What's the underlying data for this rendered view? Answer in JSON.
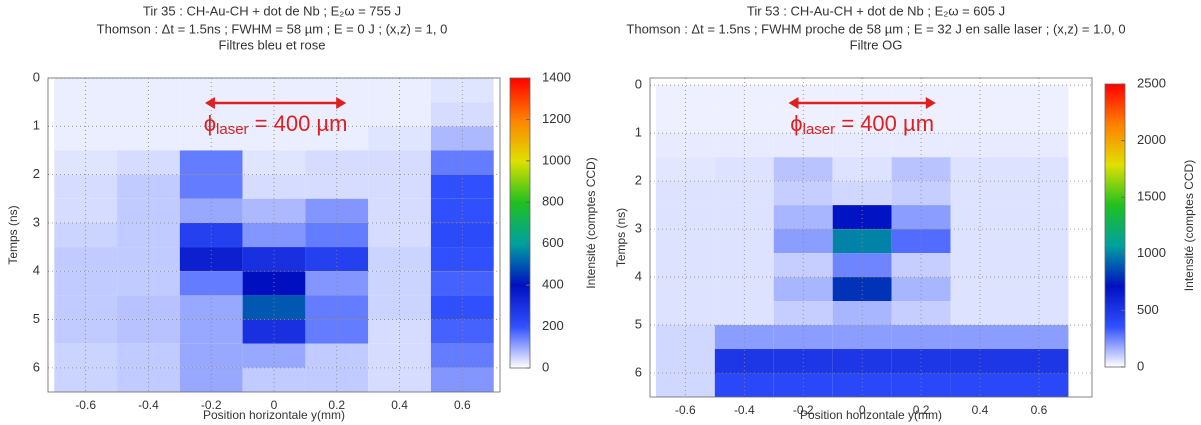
{
  "chart_data": [
    {
      "type": "heatmap",
      "title": "Tir 35 : CH-Au-CH + dot de Nb ; E₂ω = 755 J",
      "subtitles": [
        "Thomson : Δt = 1.5ns ; FWHM = 58 µm ; E = 0 J ; (x,z) = 1, 0",
        "Filtres bleu et rose"
      ],
      "x_label": "Position horizontale y(mm)",
      "y_label": "Temps (ns)",
      "z_label": "Intensité (comptes CCD)",
      "xlim": [
        -0.72,
        0.72
      ],
      "xticks": [
        -0.6,
        -0.4,
        -0.2,
        0,
        0.2,
        0.4,
        0.6
      ],
      "ylim": [
        6.5,
        0
      ],
      "yticks": [
        0,
        1,
        2,
        3,
        4,
        5,
        6
      ],
      "zlim": [
        0,
        1400
      ],
      "zticks": [
        0,
        200,
        400,
        600,
        800,
        1000,
        1200,
        1400
      ],
      "colorscale": [
        "#ffffff",
        "#3050ff",
        "#0010c0",
        "#00a0a0",
        "#20c020",
        "#e0e000",
        "#ff8000",
        "#ff0000"
      ],
      "grid": true,
      "annotation": {
        "symbol": "ϕ",
        "subscript": "laser",
        "text": " = 400 µm",
        "color": "#e02020",
        "arrow_x": [
          -0.22,
          0.23
        ]
      },
      "xbins": [
        -0.7,
        -0.5,
        -0.3,
        -0.1,
        0.1,
        0.3,
        0.5,
        0.7
      ],
      "ybins": [
        0,
        0.5,
        1,
        1.5,
        2,
        2.5,
        3,
        3.5,
        4,
        4.5,
        5,
        5.5,
        6,
        6.5
      ],
      "values": [
        [
          20,
          20,
          20,
          20,
          20,
          20,
          30
        ],
        [
          20,
          20,
          20,
          20,
          20,
          20,
          40
        ],
        [
          20,
          20,
          20,
          20,
          20,
          30,
          80
        ],
        [
          30,
          40,
          150,
          30,
          40,
          40,
          150
        ],
        [
          40,
          60,
          150,
          40,
          40,
          40,
          200
        ],
        [
          40,
          60,
          100,
          80,
          120,
          40,
          200
        ],
        [
          50,
          60,
          250,
          120,
          150,
          40,
          220
        ],
        [
          60,
          60,
          350,
          300,
          250,
          50,
          200
        ],
        [
          60,
          60,
          150,
          400,
          120,
          50,
          180
        ],
        [
          60,
          70,
          100,
          500,
          150,
          50,
          200
        ],
        [
          60,
          70,
          100,
          300,
          150,
          40,
          180
        ],
        [
          50,
          60,
          100,
          100,
          60,
          40,
          150
        ],
        [
          50,
          60,
          100,
          60,
          60,
          40,
          120
        ]
      ]
    },
    {
      "type": "heatmap",
      "title": "Tir 53 : CH-Au-CH + dot de Nb ; E₂ω = 605 J",
      "subtitles": [
        "Thomson : Δt = 1.5ns ; FWHM proche de 58 µm ; E = 32 J en salle laser ; (x,z) = 1.0, 0",
        "Filtre OG"
      ],
      "x_label": "Position horizontale y(mm)",
      "y_label": "Temps (ns)",
      "z_label": "Intensité (comptes CCD)",
      "xlim": [
        -0.72,
        0.78
      ],
      "xticks": [
        -0.6,
        -0.4,
        -0.2,
        0,
        0.2,
        0.4,
        0.6
      ],
      "ylim": [
        6.5,
        -0.15
      ],
      "yticks": [
        0,
        1,
        2,
        3,
        4,
        5,
        6
      ],
      "zlim": [
        0,
        2500
      ],
      "zticks": [
        0,
        500,
        1000,
        1500,
        2000,
        2500
      ],
      "colorscale": [
        "#ffffff",
        "#3050ff",
        "#0010c0",
        "#00a0a0",
        "#20c020",
        "#e0e000",
        "#ff8000",
        "#ff0000"
      ],
      "grid": true,
      "annotation": {
        "symbol": "ϕ",
        "subscript": "laser",
        "text": " = 400 µm",
        "color": "#e02020",
        "arrow_x": [
          -0.25,
          0.25
        ]
      },
      "xbins": [
        -0.7,
        -0.5,
        -0.3,
        -0.1,
        0.1,
        0.3,
        0.5,
        0.7
      ],
      "ybins": [
        0,
        0.5,
        1,
        1.5,
        2,
        2.5,
        3,
        3.5,
        4,
        4.5,
        5,
        5.5,
        6,
        6.5
      ],
      "values": [
        [
          30,
          30,
          30,
          30,
          30,
          30,
          30
        ],
        [
          30,
          30,
          30,
          30,
          30,
          30,
          30
        ],
        [
          40,
          40,
          40,
          40,
          40,
          40,
          40
        ],
        [
          50,
          60,
          120,
          60,
          120,
          60,
          60
        ],
        [
          60,
          60,
          100,
          80,
          100,
          60,
          60
        ],
        [
          60,
          60,
          150,
          700,
          200,
          60,
          60
        ],
        [
          60,
          60,
          200,
          1000,
          300,
          60,
          60
        ],
        [
          60,
          60,
          100,
          250,
          100,
          60,
          60
        ],
        [
          60,
          60,
          150,
          800,
          150,
          60,
          60
        ],
        [
          60,
          60,
          100,
          150,
          100,
          60,
          60
        ],
        [
          80,
          200,
          200,
          200,
          200,
          200,
          200
        ],
        [
          80,
          500,
          500,
          500,
          500,
          500,
          500
        ],
        [
          80,
          400,
          400,
          400,
          400,
          400,
          400
        ]
      ]
    }
  ]
}
